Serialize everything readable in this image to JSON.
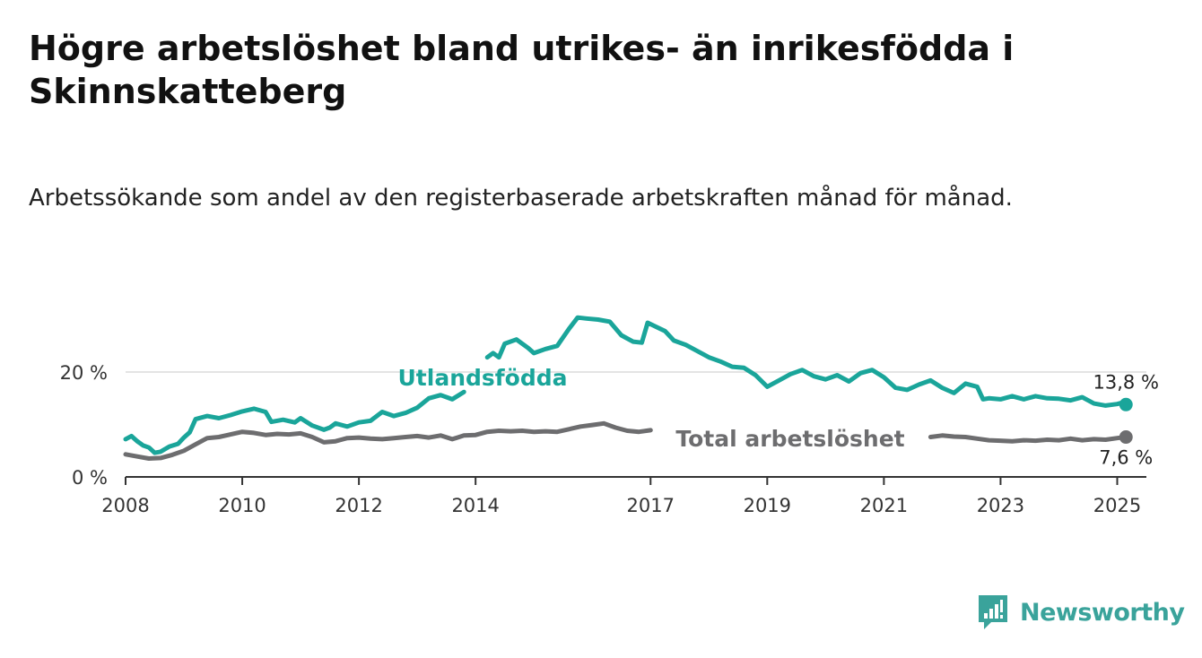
{
  "title": "Högre arbetslöshet bland utrikes- än inrikesfödda i Skinnskatteberg",
  "subtitle": "Arbetssökande som andel av den registerbaserade arbetskraften månad för månad.",
  "brand": {
    "name": "Newsworthy",
    "color": "#3aa39b"
  },
  "chart_data": {
    "type": "line",
    "x_unit": "year",
    "xlim": [
      2008,
      2025.5
    ],
    "ylim": [
      0,
      20
    ],
    "y_ticks": [
      {
        "value": 0,
        "label": "0 %"
      },
      {
        "value": 20,
        "label": "20 %"
      }
    ],
    "x_ticks": [
      {
        "value": 2008,
        "label": "2008"
      },
      {
        "value": 2010,
        "label": "2010"
      },
      {
        "value": 2012,
        "label": "2012"
      },
      {
        "value": 2014,
        "label": "2014"
      },
      {
        "value": 2017,
        "label": "2017"
      },
      {
        "value": 2019,
        "label": "2019"
      },
      {
        "value": 2021,
        "label": "2021"
      },
      {
        "value": 2023,
        "label": "2023"
      },
      {
        "value": 2025,
        "label": "2025"
      }
    ],
    "grid": "horizontal",
    "series": [
      {
        "name": "Utlandsfödda",
        "color": "#1aa59a",
        "last_label": "13,8 %",
        "points": [
          [
            2008.0,
            7.2
          ],
          [
            2008.1,
            7.8
          ],
          [
            2008.2,
            6.8
          ],
          [
            2008.3,
            6.0
          ],
          [
            2008.4,
            5.6
          ],
          [
            2008.5,
            4.6
          ],
          [
            2008.6,
            4.8
          ],
          [
            2008.75,
            5.8
          ],
          [
            2008.9,
            6.3
          ],
          [
            2009.0,
            7.5
          ],
          [
            2009.1,
            8.5
          ],
          [
            2009.2,
            11.0
          ],
          [
            2009.4,
            11.6
          ],
          [
            2009.6,
            11.2
          ],
          [
            2009.8,
            11.8
          ],
          [
            2010.0,
            12.5
          ],
          [
            2010.2,
            13.0
          ],
          [
            2010.4,
            12.4
          ],
          [
            2010.5,
            10.5
          ],
          [
            2010.7,
            10.9
          ],
          [
            2010.9,
            10.4
          ],
          [
            2011.0,
            11.2
          ],
          [
            2011.2,
            9.8
          ],
          [
            2011.4,
            9.0
          ],
          [
            2011.5,
            9.4
          ],
          [
            2011.6,
            10.2
          ],
          [
            2011.8,
            9.6
          ],
          [
            2012.0,
            10.4
          ],
          [
            2012.2,
            10.7
          ],
          [
            2012.4,
            12.4
          ],
          [
            2012.6,
            11.6
          ],
          [
            2012.8,
            12.2
          ],
          [
            2013.0,
            13.2
          ],
          [
            2013.2,
            15.0
          ],
          [
            2013.4,
            15.6
          ],
          [
            2013.6,
            14.8
          ],
          [
            2013.8,
            16.2
          ],
          null,
          [
            2014.2,
            22.8
          ],
          [
            2014.3,
            23.6
          ],
          [
            2014.4,
            22.8
          ],
          [
            2014.5,
            25.4
          ],
          [
            2014.7,
            26.2
          ],
          [
            2014.9,
            24.6
          ],
          [
            2015.0,
            23.6
          ],
          [
            2015.2,
            24.4
          ],
          [
            2015.4,
            25.0
          ],
          [
            2015.6,
            28.2
          ],
          [
            2015.75,
            30.4
          ],
          [
            2015.9,
            30.2
          ],
          [
            2016.1,
            30.0
          ],
          [
            2016.3,
            29.6
          ],
          [
            2016.5,
            27.0
          ],
          [
            2016.7,
            25.8
          ],
          [
            2016.85,
            25.6
          ],
          [
            2016.95,
            29.4
          ],
          [
            2017.1,
            28.6
          ],
          [
            2017.25,
            27.8
          ],
          [
            2017.4,
            26.0
          ],
          [
            2017.6,
            25.2
          ],
          [
            2017.8,
            24.0
          ],
          [
            2018.0,
            22.8
          ],
          [
            2018.2,
            22.0
          ],
          [
            2018.4,
            21.0
          ],
          [
            2018.6,
            20.8
          ],
          [
            2018.8,
            19.4
          ],
          [
            2019.0,
            17.2
          ],
          [
            2019.2,
            18.4
          ],
          [
            2019.4,
            19.6
          ],
          [
            2019.6,
            20.4
          ],
          [
            2019.8,
            19.2
          ],
          [
            2020.0,
            18.6
          ],
          [
            2020.2,
            19.4
          ],
          [
            2020.4,
            18.2
          ],
          [
            2020.6,
            19.8
          ],
          [
            2020.8,
            20.4
          ],
          [
            2021.0,
            19.0
          ],
          [
            2021.2,
            17.0
          ],
          [
            2021.4,
            16.6
          ],
          [
            2021.6,
            17.6
          ],
          [
            2021.8,
            18.4
          ],
          [
            2022.0,
            17.0
          ],
          [
            2022.2,
            16.0
          ],
          [
            2022.4,
            17.8
          ],
          [
            2022.6,
            17.2
          ],
          [
            2022.7,
            14.8
          ],
          [
            2022.8,
            15.0
          ],
          [
            2023.0,
            14.8
          ],
          [
            2023.2,
            15.4
          ],
          [
            2023.4,
            14.8
          ],
          [
            2023.6,
            15.4
          ],
          [
            2023.8,
            15.0
          ],
          [
            2024.0,
            14.9
          ],
          [
            2024.2,
            14.6
          ],
          [
            2024.4,
            15.2
          ],
          [
            2024.6,
            14.0
          ],
          [
            2024.8,
            13.6
          ],
          [
            2025.0,
            13.9
          ],
          [
            2025.1,
            14.2
          ],
          [
            2025.15,
            13.8
          ]
        ]
      },
      {
        "name": "Total arbetslöshet",
        "color": "#6d6d6f",
        "last_label": "7,6 %",
        "points": [
          [
            2008.0,
            4.3
          ],
          [
            2008.2,
            3.9
          ],
          [
            2008.4,
            3.5
          ],
          [
            2008.6,
            3.6
          ],
          [
            2008.8,
            4.2
          ],
          [
            2009.0,
            5.0
          ],
          [
            2009.2,
            6.2
          ],
          [
            2009.4,
            7.4
          ],
          [
            2009.6,
            7.6
          ],
          [
            2009.8,
            8.1
          ],
          [
            2010.0,
            8.6
          ],
          [
            2010.2,
            8.4
          ],
          [
            2010.4,
            8.0
          ],
          [
            2010.6,
            8.2
          ],
          [
            2010.8,
            8.1
          ],
          [
            2011.0,
            8.3
          ],
          [
            2011.2,
            7.6
          ],
          [
            2011.4,
            6.6
          ],
          [
            2011.6,
            6.8
          ],
          [
            2011.8,
            7.4
          ],
          [
            2012.0,
            7.5
          ],
          [
            2012.2,
            7.3
          ],
          [
            2012.4,
            7.2
          ],
          [
            2012.6,
            7.4
          ],
          [
            2012.8,
            7.6
          ],
          [
            2013.0,
            7.8
          ],
          [
            2013.2,
            7.5
          ],
          [
            2013.4,
            7.9
          ],
          [
            2013.6,
            7.2
          ],
          [
            2013.8,
            7.9
          ],
          [
            2014.0,
            8.0
          ],
          [
            2014.2,
            8.6
          ],
          [
            2014.4,
            8.8
          ],
          [
            2014.6,
            8.7
          ],
          [
            2014.8,
            8.8
          ],
          [
            2015.0,
            8.6
          ],
          [
            2015.2,
            8.7
          ],
          [
            2015.4,
            8.6
          ],
          [
            2015.6,
            9.1
          ],
          [
            2015.8,
            9.6
          ],
          [
            2016.0,
            9.9
          ],
          [
            2016.2,
            10.2
          ],
          [
            2016.4,
            9.4
          ],
          [
            2016.6,
            8.8
          ],
          [
            2016.8,
            8.6
          ],
          [
            2017.0,
            8.9
          ],
          null,
          [
            2021.8,
            7.6
          ],
          [
            2022.0,
            7.9
          ],
          [
            2022.2,
            7.7
          ],
          [
            2022.4,
            7.6
          ],
          [
            2022.6,
            7.3
          ],
          [
            2022.8,
            7.0
          ],
          [
            2023.0,
            6.9
          ],
          [
            2023.2,
            6.8
          ],
          [
            2023.4,
            7.0
          ],
          [
            2023.6,
            6.9
          ],
          [
            2023.8,
            7.1
          ],
          [
            2024.0,
            7.0
          ],
          [
            2024.2,
            7.3
          ],
          [
            2024.4,
            7.0
          ],
          [
            2024.6,
            7.2
          ],
          [
            2024.8,
            7.1
          ],
          [
            2025.0,
            7.4
          ],
          [
            2025.15,
            7.6
          ]
        ]
      }
    ]
  }
}
